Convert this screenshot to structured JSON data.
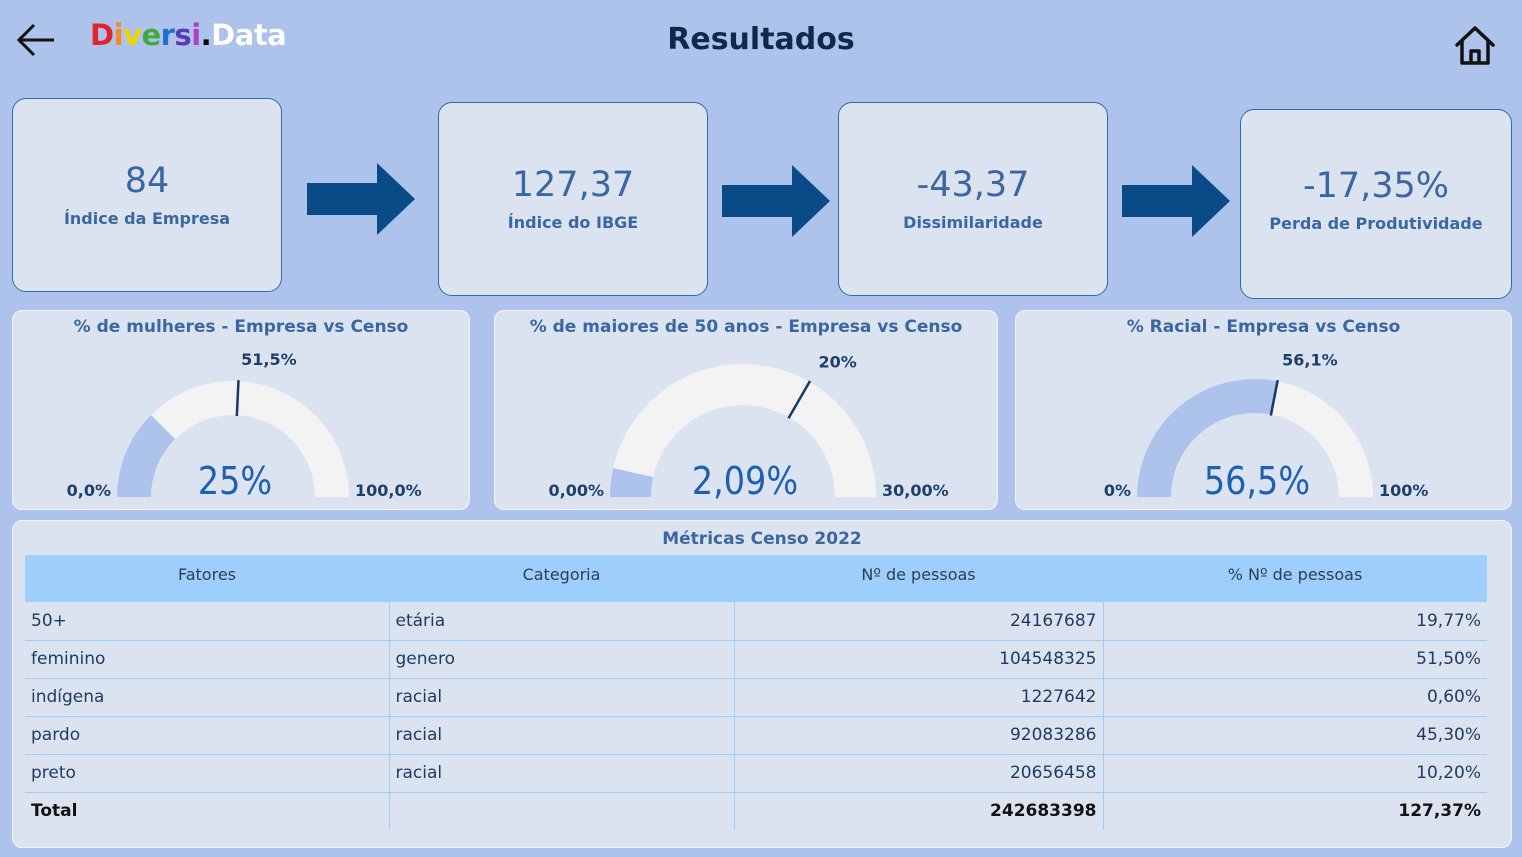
{
  "header": {
    "title": "Resultados",
    "logo": [
      {
        "t": "D",
        "c": "#e0262b"
      },
      {
        "t": "i",
        "c": "#f58a1f"
      },
      {
        "t": "v",
        "c": "#f1d400"
      },
      {
        "t": "e",
        "c": "#43a83c"
      },
      {
        "t": "r",
        "c": "#1e6fd1"
      },
      {
        "t": "s",
        "c": "#5a3ab4"
      },
      {
        "t": "i",
        "c": "#b13ec9"
      },
      {
        "t": ".",
        "c": "#000000"
      },
      {
        "t": "Data",
        "c": "#ffffff"
      }
    ],
    "back_icon": "arrow-left-icon",
    "home_icon": "home-icon"
  },
  "kpis": [
    {
      "value": "84",
      "label": "Índice da Empresa"
    },
    {
      "value": "127,37",
      "label": "Índice do IBGE"
    },
    {
      "value": "-43,37",
      "label": "Dissimilaridade"
    },
    {
      "value": "-17,35%",
      "label": "Perda de Produtividade"
    }
  ],
  "gauges": [
    {
      "title": "% de mulheres - Empresa vs Censo",
      "value_label": "25%",
      "min_label": "0,0%",
      "max_label": "100,0%",
      "target_label": "51,5%",
      "fill_fraction": 0.25,
      "target_fraction": 0.515
    },
    {
      "title": "% de maiores de 50 anos - Empresa vs Censo",
      "value_label": "2,09%",
      "min_label": "0,00%",
      "max_label": "30,00%",
      "target_label": "20%",
      "fill_fraction": 0.0697,
      "target_fraction": 0.6667
    },
    {
      "title": "% Racial - Empresa vs Censo",
      "value_label": "56,5%",
      "min_label": "0%",
      "max_label": "100%",
      "target_label": "56,1%",
      "fill_fraction": 0.565,
      "target_fraction": 0.561
    }
  ],
  "table": {
    "title": "Métricas Censo 2022",
    "headers": [
      "Fatores",
      "Categoria",
      "Nº de pessoas",
      "% Nº de pessoas"
    ],
    "rows": [
      [
        "50+",
        "etária",
        "24167687",
        "19,77%"
      ],
      [
        "feminino",
        "genero",
        "104548325",
        "51,50%"
      ],
      [
        "indígena",
        "racial",
        "1227642",
        "0,60%"
      ],
      [
        "pardo",
        "racial",
        "92083286",
        "45,30%"
      ],
      [
        "preto",
        "racial",
        "20656458",
        "10,20%"
      ]
    ],
    "total": [
      "Total",
      "",
      "242683398",
      "127,37%"
    ]
  },
  "colors": {
    "gauge_fill": "#aec3eb",
    "gauge_track": "#f3f3f4",
    "gauge_value": "#1e5fb1",
    "arrow": "#084b87"
  }
}
